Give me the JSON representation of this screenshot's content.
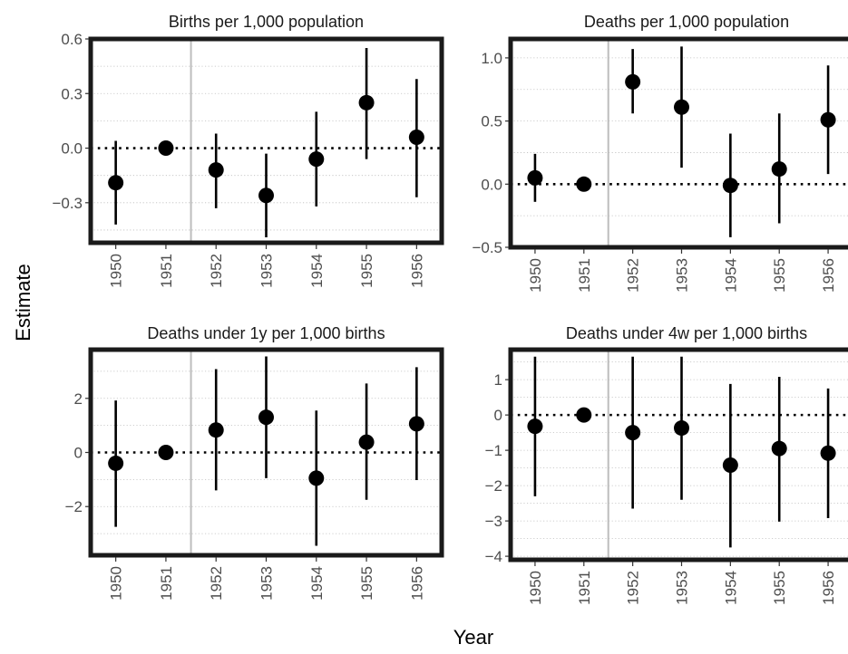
{
  "x_axis_title": "Year",
  "y_axis_title": "Estimate",
  "chart_data": [
    {
      "type": "scatter",
      "title": "Births per 1,000 population",
      "categories": [
        "1950",
        "1951",
        "1952",
        "1953",
        "1954",
        "1955",
        "1956"
      ],
      "ylim": [
        -0.52,
        0.6
      ],
      "yticks": [
        -0.3,
        0.0,
        0.3,
        0.6
      ],
      "ytick_labels": [
        "−0.3",
        "0.0",
        "0.3",
        "0.6"
      ],
      "minor_gridlines": [
        -0.45,
        -0.15,
        0.15,
        0.45
      ],
      "estimates": [
        -0.19,
        0.0,
        -0.12,
        -0.26,
        -0.06,
        0.25,
        0.06
      ],
      "ci_low": [
        -0.42,
        0.0,
        -0.33,
        -0.49,
        -0.32,
        -0.06,
        -0.27
      ],
      "ci_high": [
        0.04,
        0.0,
        0.08,
        -0.03,
        0.2,
        0.55,
        0.38
      ],
      "reference_year_after": "1951",
      "zero_line": true
    },
    {
      "type": "scatter",
      "title": "Deaths per 1,000 population",
      "categories": [
        "1950",
        "1951",
        "1952",
        "1953",
        "1954",
        "1955",
        "1956"
      ],
      "ylim": [
        -0.5,
        1.15
      ],
      "yticks": [
        -0.5,
        0.0,
        0.5,
        1.0
      ],
      "ytick_labels": [
        "−0.5",
        "0.0",
        "0.5",
        "1.0"
      ],
      "minor_gridlines": [
        -0.25,
        0.25,
        0.75
      ],
      "estimates": [
        0.05,
        0.0,
        0.81,
        0.61,
        -0.01,
        0.12,
        0.51
      ],
      "ci_low": [
        -0.14,
        0.0,
        0.56,
        0.13,
        -0.42,
        -0.31,
        0.08
      ],
      "ci_high": [
        0.24,
        0.0,
        1.07,
        1.09,
        0.4,
        0.56,
        0.94
      ],
      "reference_year_after": "1951",
      "zero_line": true
    },
    {
      "type": "scatter",
      "title": "Deaths under 1y per 1,000 births",
      "categories": [
        "1950",
        "1951",
        "1952",
        "1953",
        "1954",
        "1955",
        "1956"
      ],
      "ylim": [
        -3.8,
        3.8
      ],
      "yticks": [
        -2,
        0,
        2
      ],
      "ytick_labels": [
        "−2",
        "0",
        "2"
      ],
      "minor_gridlines": [
        -3,
        -1,
        1,
        3
      ],
      "estimates": [
        -0.4,
        0.0,
        0.83,
        1.3,
        -0.95,
        0.38,
        1.06
      ],
      "ci_low": [
        -2.75,
        0.0,
        -1.4,
        -0.95,
        -3.45,
        -1.75,
        -1.02
      ],
      "ci_high": [
        1.92,
        0.0,
        3.08,
        3.55,
        1.55,
        2.55,
        3.15
      ],
      "reference_year_after": "1951",
      "zero_line": true
    },
    {
      "type": "scatter",
      "title": "Deaths under 4w per 1,000 births",
      "categories": [
        "1950",
        "1951",
        "1952",
        "1953",
        "1954",
        "1955",
        "1956"
      ],
      "ylim": [
        -4.1,
        1.85
      ],
      "yticks": [
        -4,
        -3,
        -2,
        -1,
        0,
        1
      ],
      "ytick_labels": [
        "−4",
        "−3",
        "−2",
        "−1",
        "0",
        "1"
      ],
      "minor_gridlines": [
        -3.5,
        -2.5,
        -1.5,
        -0.5,
        0.5,
        1.5
      ],
      "estimates": [
        -0.32,
        0.0,
        -0.5,
        -0.37,
        -1.42,
        -0.95,
        -1.08
      ],
      "ci_low": [
        -2.3,
        0.0,
        -2.65,
        -2.4,
        -3.75,
        -3.02,
        -2.92
      ],
      "ci_high": [
        1.65,
        0.0,
        1.65,
        1.65,
        0.88,
        1.08,
        0.75
      ],
      "reference_year_after": "1951",
      "zero_line": true
    }
  ]
}
